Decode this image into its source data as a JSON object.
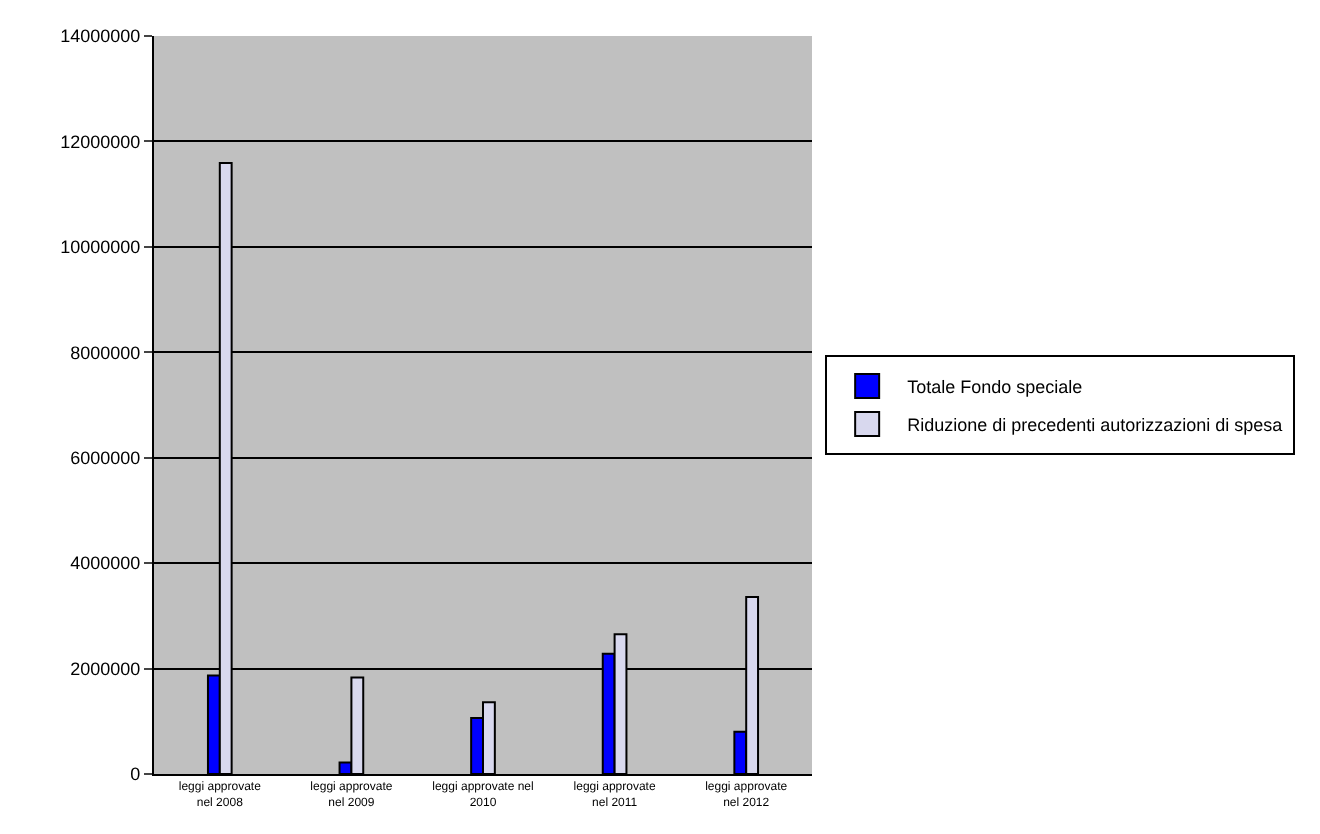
{
  "chart_data": {
    "type": "bar",
    "categories": [
      "leggi approvate\nnel 2008",
      "leggi approvate\nnel 2009",
      "leggi approvate nel\n2010",
      "leggi approvate\nnel 2011",
      "leggi approvate\nnel 2012"
    ],
    "series": [
      {
        "name": "Totale Fondo speciale",
        "color": "#0000ff",
        "values": [
          1870000,
          220000,
          1060000,
          2280000,
          800000
        ]
      },
      {
        "name": "Riduzione di precedenti autorizzazioni di spesa",
        "color": "#d8d8ee",
        "values": [
          11590000,
          1830000,
          1360000,
          2650000,
          3360000
        ]
      }
    ],
    "ylim": [
      0,
      14000000
    ],
    "yticks": [
      0,
      2000000,
      4000000,
      6000000,
      8000000,
      10000000,
      12000000,
      14000000
    ],
    "grid": "y",
    "legend": "right"
  }
}
